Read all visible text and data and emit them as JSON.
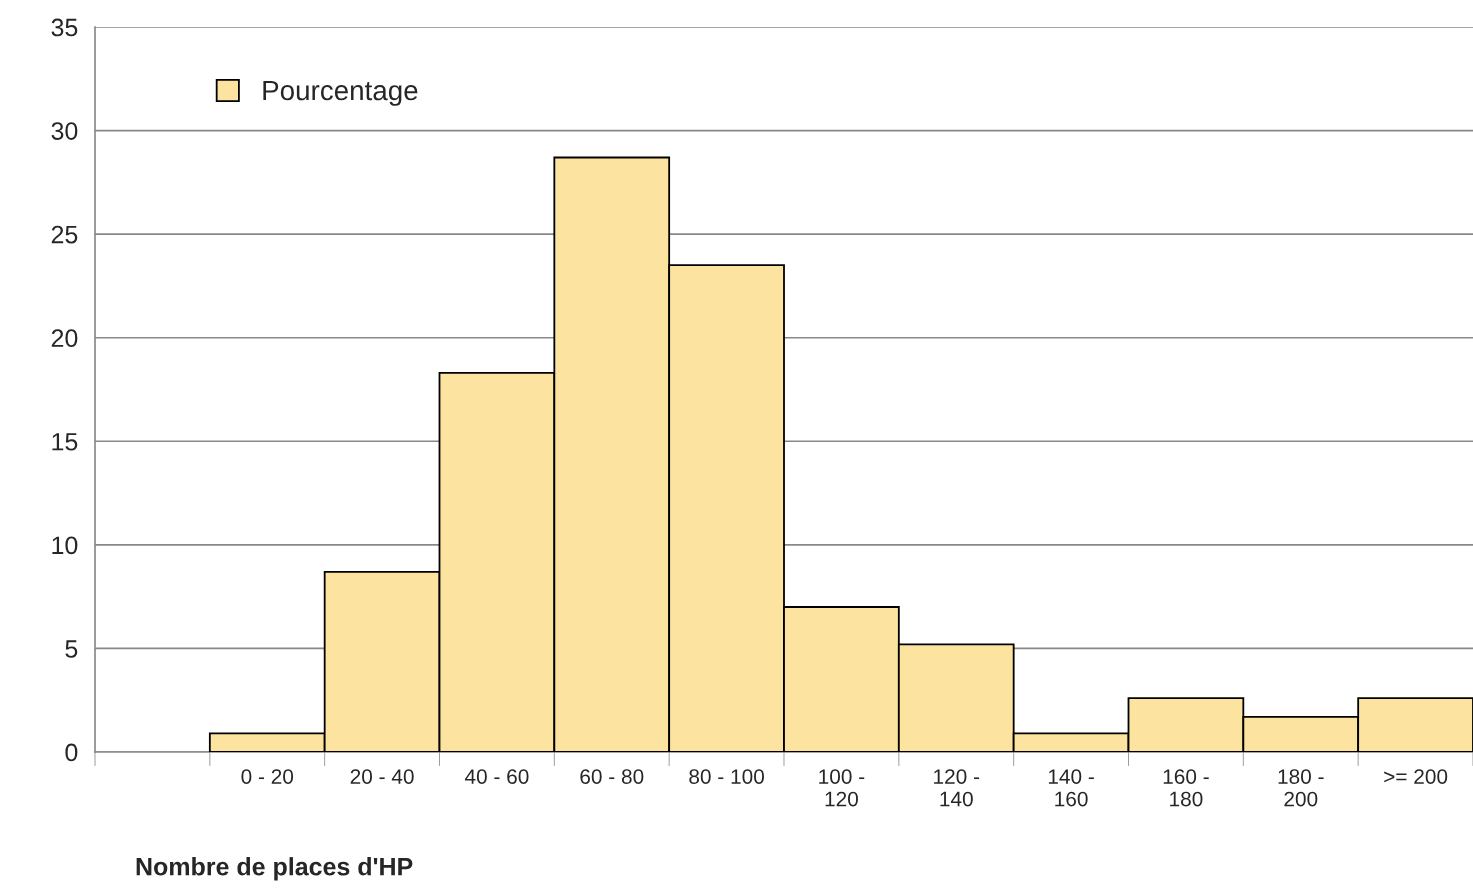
{
  "chart_data": {
    "type": "bar",
    "categories": [
      null,
      "0 - 20",
      "20 - 40",
      "40 - 60",
      "60 - 80",
      "80 - 100",
      "100 -\n120",
      "120 -\n140",
      "140 -\n160",
      "160 -\n180",
      "180 -\n200",
      ">= 200"
    ],
    "series": [
      {
        "name": "Pourcentage",
        "color": "#fde3a0",
        "values": [
          null,
          0.9,
          8.7,
          18.3,
          28.7,
          23.5,
          7.0,
          5.2,
          0.9,
          2.6,
          1.7,
          2.6
        ]
      }
    ],
    "xlabel": "Nombre de places d'HP",
    "ylim": [
      0,
      35
    ],
    "yticks": [
      0,
      5,
      10,
      15,
      20,
      25,
      30,
      35
    ],
    "grid": "y",
    "legend": "top left"
  }
}
